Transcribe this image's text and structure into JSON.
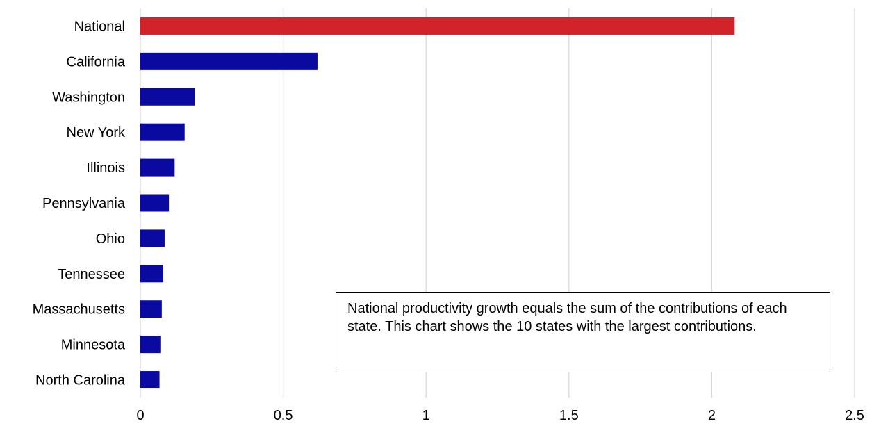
{
  "chart_data": {
    "type": "bar",
    "orientation": "horizontal",
    "categories": [
      "National",
      "California",
      "Washington",
      "New York",
      "Illinois",
      "Pennsylvania",
      "Ohio",
      "Tennessee",
      "Massachusetts",
      "Minnesota",
      "North Carolina"
    ],
    "values": [
      2.08,
      0.62,
      0.19,
      0.155,
      0.12,
      0.1,
      0.085,
      0.08,
      0.075,
      0.07,
      0.067
    ],
    "highlight_category": "National",
    "colors": {
      "highlight": "#D2232A",
      "default": "#0A0AA0",
      "grid": "#d9d9d9"
    },
    "xlim": [
      0,
      2.5
    ],
    "xticks": [
      "0",
      "0.5",
      "1",
      "1.5",
      "2",
      "2.5"
    ],
    "grid": true,
    "title": "",
    "xlabel": "",
    "ylabel": ""
  },
  "annotation": {
    "text": "National productivity growth equals the sum of the contributions of each state. This chart shows the 10 states with the largest contributions."
  }
}
